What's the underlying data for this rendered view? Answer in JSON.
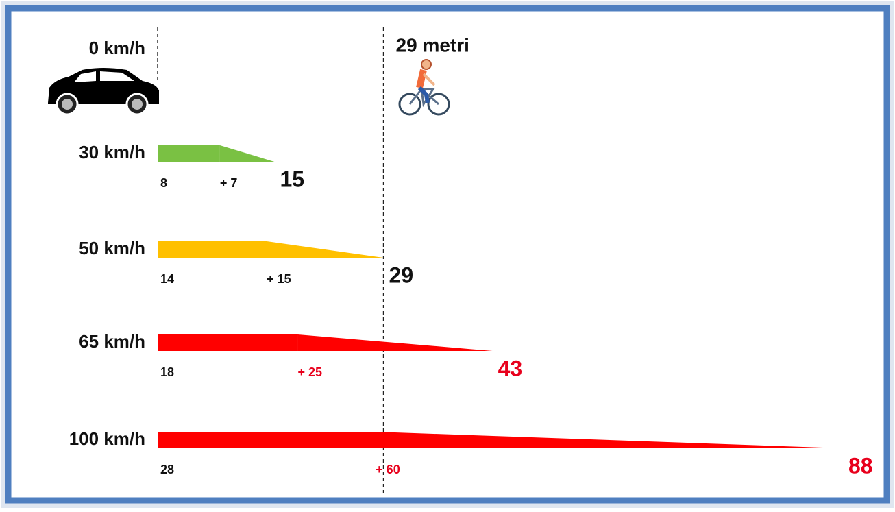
{
  "chart_data": {
    "type": "bar",
    "orientation": "horizontal",
    "start_label": "0 km/h",
    "reference": {
      "value": 29,
      "label": "29 metri"
    },
    "categories": [
      "30 km/h",
      "50 km/h",
      "65 km/h",
      "100 km/h"
    ],
    "colors": [
      "#7ac143",
      "#ffc000",
      "#ff0000",
      "#ff0000"
    ],
    "series": [
      {
        "values": [
          8,
          14,
          18,
          28
        ]
      },
      {
        "values": [
          7,
          15,
          25,
          60
        ],
        "value_labels": [
          "+ 7",
          "+ 15",
          "+ 25",
          "+ 60"
        ]
      }
    ],
    "totals": [
      15,
      29,
      43,
      88
    ],
    "label_colors": [
      "#111111",
      "#111111",
      "#e8001c",
      "#e8001c"
    ],
    "xlim": [
      0,
      88
    ]
  }
}
